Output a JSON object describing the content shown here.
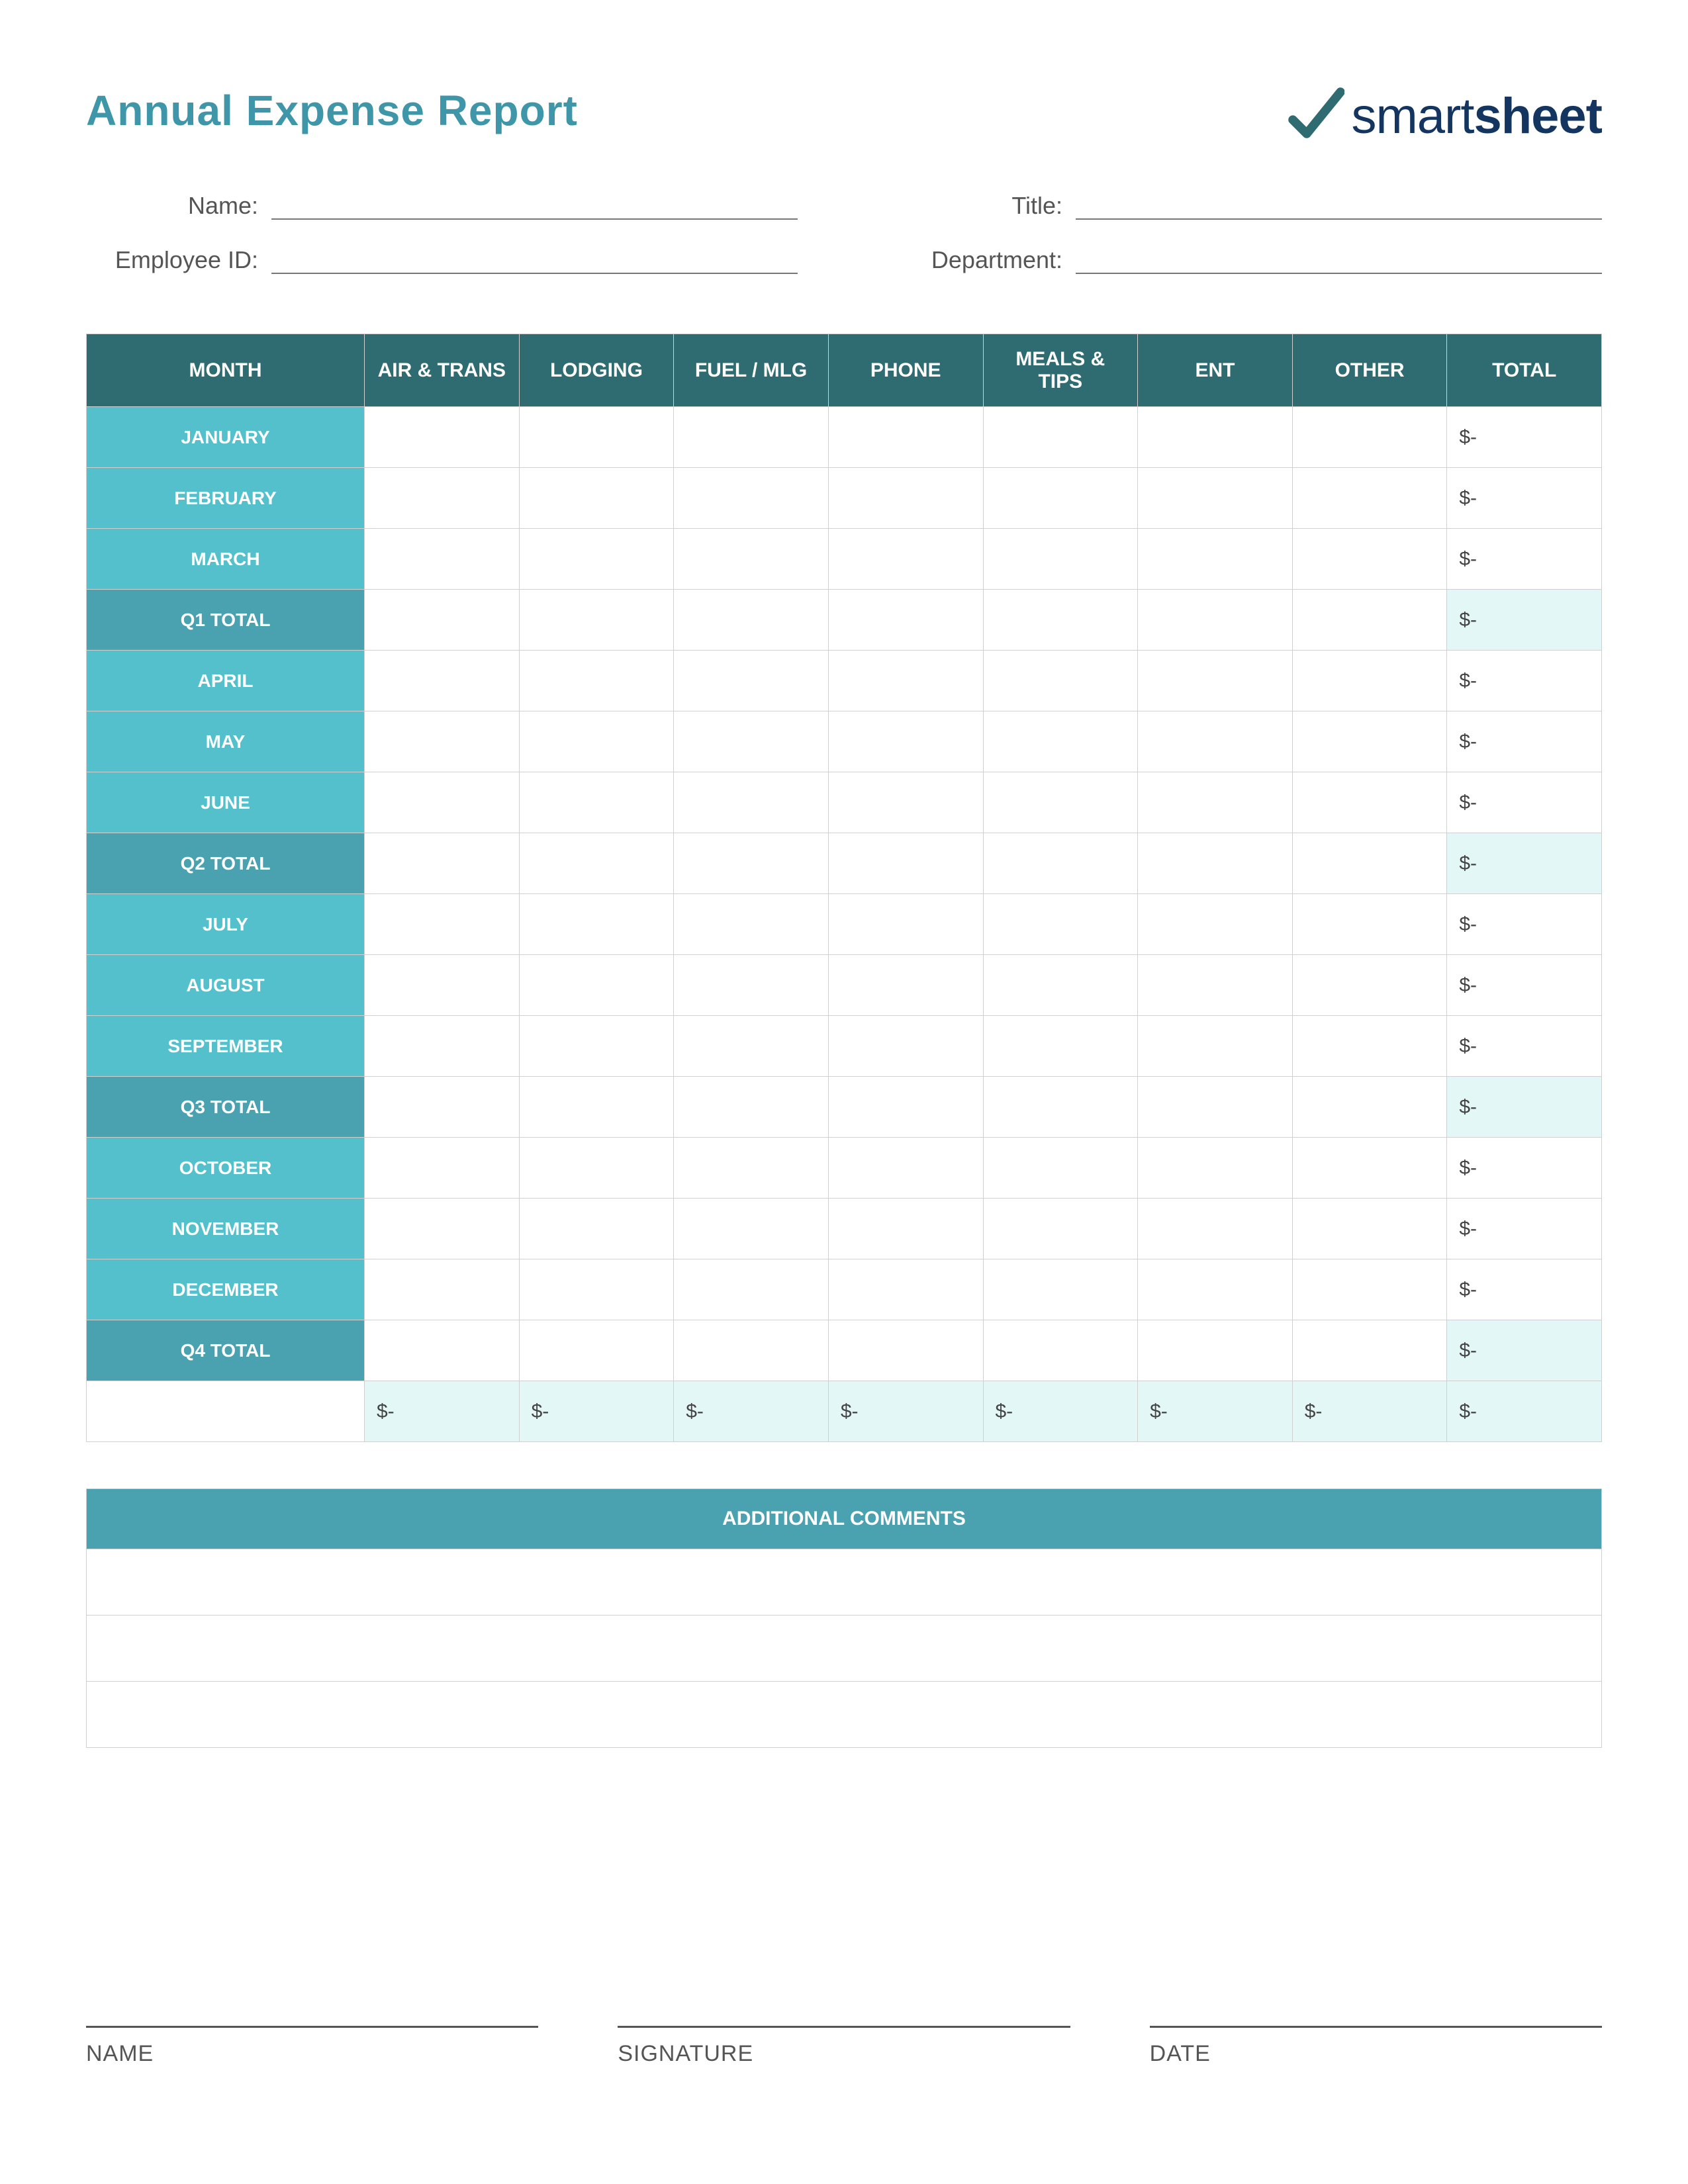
{
  "page": {
    "title": "Annual Expense Report",
    "logo_thin": "smart",
    "logo_bold": "sheet"
  },
  "colors": {
    "title": "#3e96a8",
    "logo_text": "#13355f",
    "logo_check": "#2f6c72",
    "table_header_bg": "#2f6c72",
    "month_cell_bg": "#54c0cb",
    "quarter_cell_bg": "#4aa2b0",
    "tint_bg": "#e3f7f7",
    "border": "#d0d0d0",
    "text": "#444444",
    "white": "#ffffff"
  },
  "fields": {
    "name_label": "Name:",
    "title_label": "Title:",
    "employee_id_label": "Employee ID:",
    "department_label": "Department:",
    "name_value": "",
    "title_value": "",
    "employee_id_value": "",
    "department_value": ""
  },
  "table": {
    "columns": [
      "MONTH",
      "AIR & TRANS",
      "LODGING",
      "FUEL / MLG",
      "PHONE",
      "MEALS & TIPS",
      "ENT",
      "OTHER",
      "TOTAL"
    ],
    "rows": [
      {
        "type": "month",
        "label": "JANUARY",
        "cells": [
          "",
          "",
          "",
          "",
          "",
          "",
          "",
          "$-"
        ]
      },
      {
        "type": "month",
        "label": "FEBRUARY",
        "cells": [
          "",
          "",
          "",
          "",
          "",
          "",
          "",
          "$-"
        ]
      },
      {
        "type": "month",
        "label": "MARCH",
        "cells": [
          "",
          "",
          "",
          "",
          "",
          "",
          "",
          "$-"
        ]
      },
      {
        "type": "qtotal",
        "label": "Q1 TOTAL",
        "cells": [
          "",
          "",
          "",
          "",
          "",
          "",
          "",
          "$-"
        ]
      },
      {
        "type": "month",
        "label": "APRIL",
        "cells": [
          "",
          "",
          "",
          "",
          "",
          "",
          "",
          "$-"
        ]
      },
      {
        "type": "month",
        "label": "MAY",
        "cells": [
          "",
          "",
          "",
          "",
          "",
          "",
          "",
          "$-"
        ]
      },
      {
        "type": "month",
        "label": "JUNE",
        "cells": [
          "",
          "",
          "",
          "",
          "",
          "",
          "",
          "$-"
        ]
      },
      {
        "type": "qtotal",
        "label": "Q2 TOTAL",
        "cells": [
          "",
          "",
          "",
          "",
          "",
          "",
          "",
          "$-"
        ]
      },
      {
        "type": "month",
        "label": "JULY",
        "cells": [
          "",
          "",
          "",
          "",
          "",
          "",
          "",
          "$-"
        ]
      },
      {
        "type": "month",
        "label": "AUGUST",
        "cells": [
          "",
          "",
          "",
          "",
          "",
          "",
          "",
          "$-"
        ]
      },
      {
        "type": "month",
        "label": "SEPTEMBER",
        "cells": [
          "",
          "",
          "",
          "",
          "",
          "",
          "",
          "$-"
        ]
      },
      {
        "type": "qtotal",
        "label": "Q3 TOTAL",
        "cells": [
          "",
          "",
          "",
          "",
          "",
          "",
          "",
          "$-"
        ]
      },
      {
        "type": "month",
        "label": "OCTOBER",
        "cells": [
          "",
          "",
          "",
          "",
          "",
          "",
          "",
          "$-"
        ]
      },
      {
        "type": "month",
        "label": "NOVEMBER",
        "cells": [
          "",
          "",
          "",
          "",
          "",
          "",
          "",
          "$-"
        ]
      },
      {
        "type": "month",
        "label": "DECEMBER",
        "cells": [
          "",
          "",
          "",
          "",
          "",
          "",
          "",
          "$-"
        ]
      },
      {
        "type": "qtotal",
        "label": "Q4 TOTAL",
        "cells": [
          "",
          "",
          "",
          "",
          "",
          "",
          "",
          "$-"
        ]
      },
      {
        "type": "grand",
        "label": "",
        "cells": [
          "$-",
          "$-",
          "$-",
          "$-",
          "$-",
          "$-",
          "$-",
          "$-"
        ]
      }
    ]
  },
  "comments": {
    "header": "ADDITIONAL COMMENTS",
    "rows": 3
  },
  "signatures": {
    "name": "NAME",
    "signature": "SIGNATURE",
    "date": "DATE"
  }
}
